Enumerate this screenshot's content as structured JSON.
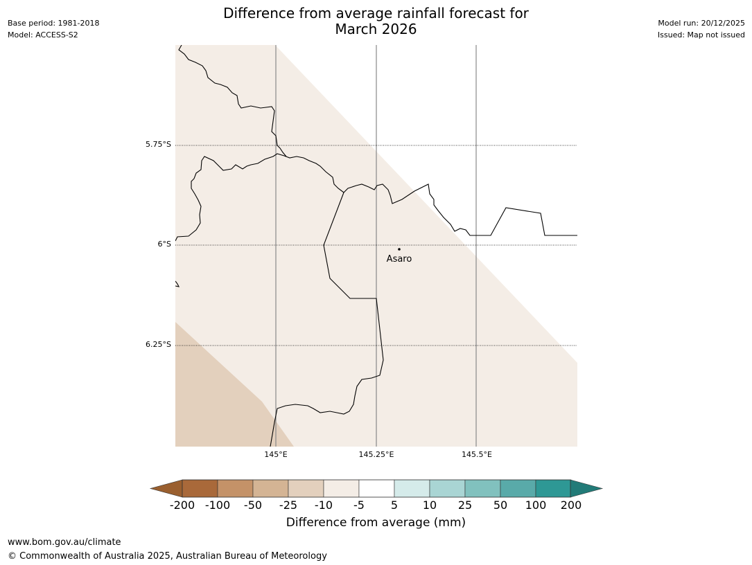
{
  "header": {
    "base_period": "Base period: 1981-2018",
    "model": "Model: ACCESS-S2",
    "model_run": "Model run: 20/12/2025",
    "issued": "Issued: Map not issued",
    "title_line1": "Difference from average rainfall forecast for",
    "title_line2": "March 2026"
  },
  "map": {
    "latitude_labels": [
      "5.75°S",
      "6°S",
      "6.25°S"
    ],
    "longitude_labels": [
      "145°E",
      "145.25°E",
      "145.5°E"
    ],
    "place": {
      "name": "Asaro"
    },
    "fill_colors": {
      "minus10_to_minus5": "#f4ede6",
      "minus25_to_minus10": "#e3d0bd",
      "outline": "#000000",
      "gridline": "#888888"
    }
  },
  "colorbar": {
    "ticks": [
      "-200",
      "-100",
      "-50",
      "-25",
      "-10",
      "-5",
      "5",
      "10",
      "25",
      "50",
      "100",
      "200"
    ],
    "colors": [
      "#a9693a",
      "#c49268",
      "#d4b494",
      "#e3d0bd",
      "#f4ede6",
      "#ffffff",
      "#d5ebea",
      "#a9d5d4",
      "#81c1be",
      "#59aaa9",
      "#2e9895"
    ],
    "low_extend_color": "#9a5f2f",
    "high_extend_color": "#227b78",
    "label": "Difference from average (mm)"
  },
  "footer": {
    "url": "www.bom.gov.au/climate",
    "copyright": "© Commonwealth of Australia 2025, Australian Bureau of Meteorology"
  }
}
